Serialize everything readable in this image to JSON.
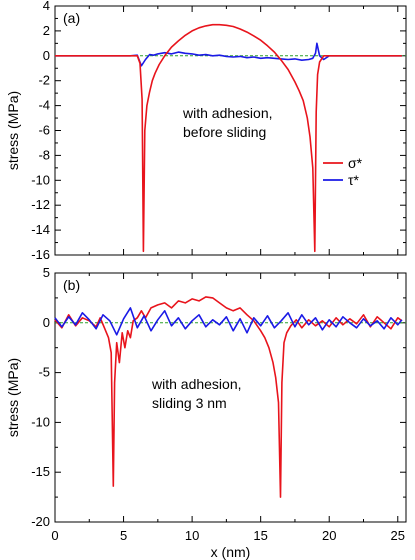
{
  "chart_data": [
    {
      "type": "line",
      "panel_label": "(a)",
      "annotation": [
        "with adhesion,",
        "before sliding"
      ],
      "ylabel": "stress  (MPa)",
      "xlabel": "",
      "xlim": [
        0,
        25.6
      ],
      "ylim": [
        -16,
        4
      ],
      "xticks": [
        0,
        5,
        10,
        15,
        20,
        25
      ],
      "yticks": [
        4,
        2,
        0,
        -2,
        -4,
        -6,
        -8,
        -10,
        -12,
        -14,
        -16
      ],
      "grid": false,
      "legend": {
        "placement": "right",
        "entries": [
          {
            "name": "σ*",
            "color": "#e8141c"
          },
          {
            "name": "τ*",
            "color": "#1a1ae6"
          }
        ]
      },
      "reference_line": {
        "y": 0,
        "color": "#2ca02c",
        "style": "dashed"
      },
      "series": [
        {
          "name": "σ*",
          "color": "#e8141c",
          "x": [
            0,
            6.0,
            6.2,
            6.35,
            6.45,
            6.55,
            6.7,
            6.9,
            7.1,
            7.3,
            7.6,
            8.0,
            8.5,
            9.0,
            9.5,
            10.0,
            10.5,
            11.0,
            11.5,
            12.0,
            12.5,
            13.0,
            13.5,
            14.0,
            14.5,
            15.0,
            15.5,
            16.0,
            16.5,
            17.0,
            17.5,
            17.8,
            18.1,
            18.4,
            18.6,
            18.8,
            18.95,
            19.05,
            19.15,
            19.3,
            19.6,
            25.3
          ],
          "y": [
            0,
            0,
            -0.6,
            -3.5,
            -15.7,
            -6.0,
            -4.0,
            -2.9,
            -2.0,
            -1.4,
            -0.7,
            0.0,
            0.7,
            1.2,
            1.65,
            2.0,
            2.25,
            2.4,
            2.5,
            2.5,
            2.45,
            2.35,
            2.15,
            1.9,
            1.6,
            1.25,
            0.8,
            0.3,
            -0.35,
            -1.1,
            -2.1,
            -2.8,
            -3.6,
            -5.0,
            -6.5,
            -9.0,
            -15.7,
            -4.5,
            -1.5,
            -0.5,
            0,
            0
          ]
        },
        {
          "name": "τ*",
          "color": "#1a1ae6",
          "x": [
            0,
            5.5,
            6.0,
            6.3,
            6.6,
            6.9,
            7.2,
            7.5,
            8.0,
            8.5,
            9.0,
            9.5,
            10.0,
            10.5,
            11.0,
            11.5,
            12.0,
            12.5,
            13.0,
            13.5,
            14.0,
            14.5,
            15.0,
            15.5,
            16.0,
            16.5,
            17.0,
            17.5,
            18.0,
            18.5,
            18.8,
            19.0,
            19.1,
            19.3,
            19.6,
            20.0,
            25.3
          ],
          "y": [
            0,
            0,
            0.05,
            -0.8,
            -0.3,
            0.1,
            0.05,
            0.15,
            0.25,
            0.15,
            0.3,
            0.2,
            0.15,
            0.05,
            0.1,
            0.0,
            0.05,
            -0.05,
            -0.1,
            -0.05,
            -0.15,
            -0.1,
            -0.2,
            -0.15,
            -0.2,
            -0.25,
            -0.3,
            -0.25,
            -0.35,
            -0.3,
            -0.2,
            0.2,
            1.0,
            0.0,
            -0.3,
            0.0,
            0
          ]
        }
      ]
    },
    {
      "type": "line",
      "panel_label": "(b)",
      "annotation": [
        "with adhesion,",
        "sliding 3 nm"
      ],
      "ylabel": "stress  (MPa)",
      "xlabel": "x  (nm)",
      "xlim": [
        0,
        25.6
      ],
      "ylim": [
        -20,
        5
      ],
      "xticks": [
        0,
        5,
        10,
        15,
        20,
        25
      ],
      "yticks": [
        5,
        0,
        -5,
        -10,
        -15,
        -20
      ],
      "grid": false,
      "reference_line": {
        "y": 0,
        "color": "#2ca02c",
        "style": "dashed"
      },
      "series": [
        {
          "name": "σ*",
          "color": "#e8141c",
          "x": [
            0,
            0.5,
            1.0,
            1.5,
            2.0,
            2.5,
            3.0,
            3.3,
            3.6,
            3.9,
            4.1,
            4.25,
            4.35,
            4.5,
            4.7,
            4.9,
            5.1,
            5.3,
            5.5,
            5.7,
            6.0,
            6.3,
            6.6,
            7.0,
            7.5,
            8.0,
            8.5,
            9.0,
            9.5,
            10.0,
            10.5,
            11.0,
            11.5,
            12.0,
            12.5,
            13.0,
            13.5,
            14.0,
            14.5,
            15.0,
            15.3,
            15.6,
            15.9,
            16.1,
            16.3,
            16.45,
            16.55,
            16.7,
            16.9,
            17.2,
            17.6,
            18.0,
            18.5,
            19.0,
            19.5,
            20.0,
            20.5,
            21.0,
            21.5,
            22.0,
            22.5,
            23.0,
            23.5,
            24.0,
            24.5,
            25.0,
            25.3
          ],
          "y": [
            0.3,
            -0.5,
            0.8,
            -0.3,
            0.5,
            0.2,
            -0.4,
            0.5,
            -0.5,
            -1.5,
            -3.0,
            -16.4,
            -6.0,
            -2.0,
            -4.0,
            -1.0,
            -2.5,
            -0.8,
            -1.5,
            0.2,
            0.5,
            1.2,
            0.5,
            1.5,
            1.8,
            2.0,
            1.5,
            2.2,
            2.0,
            2.4,
            2.2,
            2.6,
            2.5,
            2.0,
            1.5,
            1.2,
            1.5,
            0.8,
            0.2,
            -0.8,
            -1.5,
            -2.5,
            -4.0,
            -5.5,
            -8.0,
            -17.5,
            -6.0,
            -2.0,
            -1.0,
            -0.3,
            0.3,
            -0.5,
            0.3,
            -0.3,
            0.2,
            -0.4,
            0.5,
            -0.2,
            0.4,
            -0.1,
            0.8,
            -0.4,
            0.6,
            0.0,
            -0.6,
            0.5,
            0.2
          ]
        },
        {
          "name": "τ*",
          "color": "#1a1ae6",
          "x": [
            0,
            0.5,
            1.0,
            1.5,
            2.0,
            2.5,
            3.0,
            3.5,
            4.0,
            4.5,
            5.0,
            5.5,
            6.0,
            6.5,
            7.0,
            7.5,
            8.0,
            8.5,
            9.0,
            9.5,
            10.0,
            10.5,
            11.0,
            11.5,
            12.0,
            12.5,
            13.0,
            13.5,
            14.0,
            14.5,
            15.0,
            15.5,
            16.0,
            16.5,
            17.0,
            17.5,
            18.0,
            18.5,
            19.0,
            19.5,
            20.0,
            20.5,
            21.0,
            21.5,
            22.0,
            22.5,
            23.0,
            23.5,
            24.0,
            24.5,
            25.0,
            25.3
          ],
          "y": [
            0.5,
            -0.4,
            0.6,
            -0.2,
            1.0,
            0.3,
            -0.6,
            0.8,
            0.2,
            -1.2,
            0.4,
            1.5,
            -0.5,
            0.7,
            -0.8,
            0.3,
            1.2,
            -0.3,
            0.5,
            -0.6,
            0.2,
            0.8,
            -0.4,
            0.3,
            -0.2,
            0.6,
            -0.8,
            0.4,
            -1.0,
            0.5,
            -0.3,
            0.7,
            -0.5,
            0.2,
            1.0,
            -0.4,
            0.8,
            -0.2,
            0.5,
            -0.7,
            0.3,
            -0.4,
            0.6,
            0.0,
            -0.5,
            0.4,
            -0.3,
            0.2,
            -0.6,
            0.5,
            -0.2,
            0.3
          ]
        }
      ]
    }
  ]
}
